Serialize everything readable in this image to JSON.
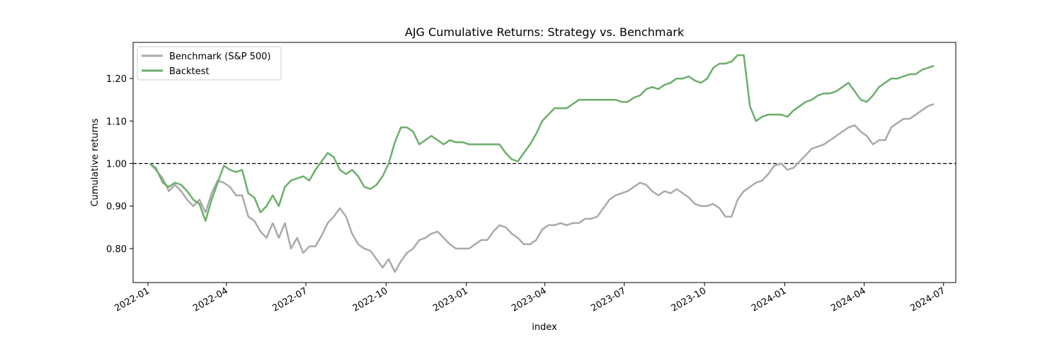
{
  "chart_data": {
    "type": "line",
    "title": "AJG Cumulative Returns: Strategy vs. Benchmark",
    "xlabel": "index",
    "ylabel": "Cumulative returns",
    "xlim": [
      "2021-12-15",
      "2024-07-15"
    ],
    "ylim": [
      0.72,
      1.285
    ],
    "x_ticks": [
      "2022-01",
      "2022-04",
      "2022-07",
      "2022-10",
      "2023-01",
      "2023-04",
      "2023-07",
      "2023-10",
      "2024-01",
      "2024-04",
      "2024-07"
    ],
    "y_ticks": [
      0.8,
      0.9,
      1.0,
      1.1,
      1.2
    ],
    "y_tick_labels": [
      "0.80",
      "0.90",
      "1.00",
      "1.10",
      "1.20"
    ],
    "reference_line": {
      "y": 1.0,
      "style": "dashed",
      "color": "#000000"
    },
    "legend": {
      "placement": "top-left"
    },
    "grid": false,
    "series": [
      {
        "name": "Benchmark (S&P 500)",
        "color": "#aaaaaa",
        "x": [
          "2022-01-03",
          "2022-01-10",
          "2022-01-18",
          "2022-01-25",
          "2022-02-01",
          "2022-02-08",
          "2022-02-15",
          "2022-02-22",
          "2022-03-01",
          "2022-03-08",
          "2022-03-15",
          "2022-03-22",
          "2022-03-29",
          "2022-04-05",
          "2022-04-12",
          "2022-04-19",
          "2022-04-26",
          "2022-05-03",
          "2022-05-10",
          "2022-05-17",
          "2022-05-24",
          "2022-05-31",
          "2022-06-07",
          "2022-06-14",
          "2022-06-21",
          "2022-06-28",
          "2022-07-05",
          "2022-07-12",
          "2022-07-19",
          "2022-07-26",
          "2022-08-02",
          "2022-08-09",
          "2022-08-16",
          "2022-08-23",
          "2022-08-30",
          "2022-09-06",
          "2022-09-13",
          "2022-09-20",
          "2022-09-27",
          "2022-10-04",
          "2022-10-11",
          "2022-10-18",
          "2022-10-25",
          "2022-11-01",
          "2022-11-08",
          "2022-11-15",
          "2022-11-22",
          "2022-11-29",
          "2022-12-06",
          "2022-12-13",
          "2022-12-20",
          "2022-12-28",
          "2023-01-04",
          "2023-01-11",
          "2023-01-18",
          "2023-01-25",
          "2023-02-01",
          "2023-02-08",
          "2023-02-15",
          "2023-02-22",
          "2023-03-01",
          "2023-03-08",
          "2023-03-15",
          "2023-03-22",
          "2023-03-29",
          "2023-04-05",
          "2023-04-12",
          "2023-04-19",
          "2023-04-26",
          "2023-05-03",
          "2023-05-10",
          "2023-05-17",
          "2023-05-24",
          "2023-05-31",
          "2023-06-07",
          "2023-06-14",
          "2023-06-21",
          "2023-06-28",
          "2023-07-05",
          "2023-07-12",
          "2023-07-19",
          "2023-07-26",
          "2023-08-02",
          "2023-08-09",
          "2023-08-16",
          "2023-08-23",
          "2023-08-30",
          "2023-09-06",
          "2023-09-13",
          "2023-09-20",
          "2023-09-27",
          "2023-10-04",
          "2023-10-11",
          "2023-10-18",
          "2023-10-25",
          "2023-11-01",
          "2023-11-08",
          "2023-11-15",
          "2023-11-22",
          "2023-11-29",
          "2023-12-06",
          "2023-12-13",
          "2023-12-20",
          "2023-12-28",
          "2024-01-04",
          "2024-01-11",
          "2024-01-18",
          "2024-01-25",
          "2024-02-01",
          "2024-02-08",
          "2024-02-15",
          "2024-02-22",
          "2024-02-29",
          "2024-03-07",
          "2024-03-14",
          "2024-03-21",
          "2024-03-28",
          "2024-04-04",
          "2024-04-11",
          "2024-04-18",
          "2024-04-25",
          "2024-05-02",
          "2024-05-09",
          "2024-05-16",
          "2024-05-23",
          "2024-05-30",
          "2024-06-06",
          "2024-06-13",
          "2024-06-20"
        ],
        "values": [
          1.0,
          0.985,
          0.965,
          0.935,
          0.95,
          0.935,
          0.915,
          0.9,
          0.915,
          0.885,
          0.93,
          0.96,
          0.955,
          0.945,
          0.925,
          0.925,
          0.875,
          0.865,
          0.84,
          0.825,
          0.86,
          0.825,
          0.86,
          0.8,
          0.825,
          0.79,
          0.805,
          0.805,
          0.83,
          0.86,
          0.875,
          0.895,
          0.875,
          0.835,
          0.81,
          0.8,
          0.795,
          0.775,
          0.755,
          0.775,
          0.745,
          0.77,
          0.79,
          0.8,
          0.82,
          0.825,
          0.835,
          0.84,
          0.825,
          0.81,
          0.8,
          0.8,
          0.8,
          0.81,
          0.82,
          0.82,
          0.84,
          0.855,
          0.85,
          0.835,
          0.825,
          0.81,
          0.81,
          0.82,
          0.845,
          0.855,
          0.855,
          0.86,
          0.855,
          0.86,
          0.86,
          0.87,
          0.87,
          0.875,
          0.895,
          0.915,
          0.925,
          0.93,
          0.935,
          0.945,
          0.955,
          0.95,
          0.935,
          0.925,
          0.935,
          0.93,
          0.94,
          0.93,
          0.92,
          0.905,
          0.9,
          0.9,
          0.905,
          0.895,
          0.875,
          0.875,
          0.915,
          0.935,
          0.945,
          0.955,
          0.96,
          0.975,
          0.995,
          1.0,
          0.985,
          0.99,
          1.005,
          1.02,
          1.035,
          1.04,
          1.045,
          1.055,
          1.065,
          1.075,
          1.085,
          1.09,
          1.075,
          1.065,
          1.045,
          1.055,
          1.055,
          1.085,
          1.095,
          1.105,
          1.105,
          1.115,
          1.125,
          1.135,
          1.14
        ]
      },
      {
        "name": "Backtest",
        "color": "#6aaf6a",
        "x": [
          "2022-01-03",
          "2022-01-10",
          "2022-01-18",
          "2022-01-25",
          "2022-02-01",
          "2022-02-08",
          "2022-02-15",
          "2022-02-22",
          "2022-03-01",
          "2022-03-08",
          "2022-03-15",
          "2022-03-22",
          "2022-03-29",
          "2022-04-05",
          "2022-04-12",
          "2022-04-19",
          "2022-04-26",
          "2022-05-03",
          "2022-05-10",
          "2022-05-17",
          "2022-05-24",
          "2022-05-31",
          "2022-06-07",
          "2022-06-14",
          "2022-06-21",
          "2022-06-28",
          "2022-07-05",
          "2022-07-12",
          "2022-07-19",
          "2022-07-26",
          "2022-08-02",
          "2022-08-09",
          "2022-08-16",
          "2022-08-23",
          "2022-08-30",
          "2022-09-06",
          "2022-09-13",
          "2022-09-20",
          "2022-09-27",
          "2022-10-04",
          "2022-10-11",
          "2022-10-18",
          "2022-10-25",
          "2022-11-01",
          "2022-11-08",
          "2022-11-15",
          "2022-11-22",
          "2022-11-29",
          "2022-12-06",
          "2022-12-13",
          "2022-12-20",
          "2022-12-28",
          "2023-01-04",
          "2023-01-11",
          "2023-01-18",
          "2023-01-25",
          "2023-02-01",
          "2023-02-08",
          "2023-02-15",
          "2023-02-22",
          "2023-03-01",
          "2023-03-08",
          "2023-03-15",
          "2023-03-22",
          "2023-03-29",
          "2023-04-05",
          "2023-04-12",
          "2023-04-19",
          "2023-04-26",
          "2023-05-03",
          "2023-05-10",
          "2023-05-17",
          "2023-05-24",
          "2023-05-31",
          "2023-06-07",
          "2023-06-14",
          "2023-06-21",
          "2023-06-28",
          "2023-07-05",
          "2023-07-12",
          "2023-07-19",
          "2023-07-26",
          "2023-08-02",
          "2023-08-09",
          "2023-08-16",
          "2023-08-23",
          "2023-08-30",
          "2023-09-06",
          "2023-09-13",
          "2023-09-20",
          "2023-09-27",
          "2023-10-04",
          "2023-10-11",
          "2023-10-18",
          "2023-10-25",
          "2023-11-01",
          "2023-11-08",
          "2023-11-15",
          "2023-11-22",
          "2023-11-29",
          "2023-12-06",
          "2023-12-13",
          "2023-12-20",
          "2023-12-28",
          "2024-01-04",
          "2024-01-11",
          "2024-01-18",
          "2024-01-25",
          "2024-02-01",
          "2024-02-08",
          "2024-02-15",
          "2024-02-22",
          "2024-02-29",
          "2024-03-07",
          "2024-03-14",
          "2024-03-21",
          "2024-03-28",
          "2024-04-04",
          "2024-04-11",
          "2024-04-18",
          "2024-04-25",
          "2024-05-02",
          "2024-05-09",
          "2024-05-16",
          "2024-05-23",
          "2024-05-30",
          "2024-06-06",
          "2024-06-13",
          "2024-06-20"
        ],
        "values": [
          1.0,
          0.99,
          0.955,
          0.945,
          0.955,
          0.95,
          0.935,
          0.915,
          0.905,
          0.865,
          0.915,
          0.955,
          0.995,
          0.985,
          0.98,
          0.985,
          0.93,
          0.92,
          0.885,
          0.9,
          0.925,
          0.9,
          0.945,
          0.96,
          0.965,
          0.97,
          0.96,
          0.985,
          1.005,
          1.025,
          1.015,
          0.985,
          0.975,
          0.985,
          0.97,
          0.945,
          0.94,
          0.95,
          0.97,
          1.0,
          1.05,
          1.085,
          1.085,
          1.075,
          1.045,
          1.055,
          1.065,
          1.055,
          1.045,
          1.055,
          1.05,
          1.05,
          1.045,
          1.045,
          1.045,
          1.045,
          1.045,
          1.045,
          1.025,
          1.01,
          1.005,
          1.025,
          1.045,
          1.07,
          1.1,
          1.115,
          1.13,
          1.13,
          1.13,
          1.14,
          1.15,
          1.15,
          1.15,
          1.15,
          1.15,
          1.15,
          1.15,
          1.145,
          1.145,
          1.155,
          1.16,
          1.175,
          1.18,
          1.175,
          1.185,
          1.19,
          1.2,
          1.2,
          1.205,
          1.195,
          1.19,
          1.2,
          1.225,
          1.235,
          1.235,
          1.24,
          1.255,
          1.255,
          1.135,
          1.1,
          1.11,
          1.115,
          1.115,
          1.115,
          1.11,
          1.125,
          1.135,
          1.145,
          1.15,
          1.16,
          1.165,
          1.165,
          1.17,
          1.18,
          1.19,
          1.17,
          1.15,
          1.145,
          1.16,
          1.18,
          1.19,
          1.2,
          1.2,
          1.205,
          1.21,
          1.21,
          1.22,
          1.225,
          1.23
        ]
      }
    ]
  }
}
